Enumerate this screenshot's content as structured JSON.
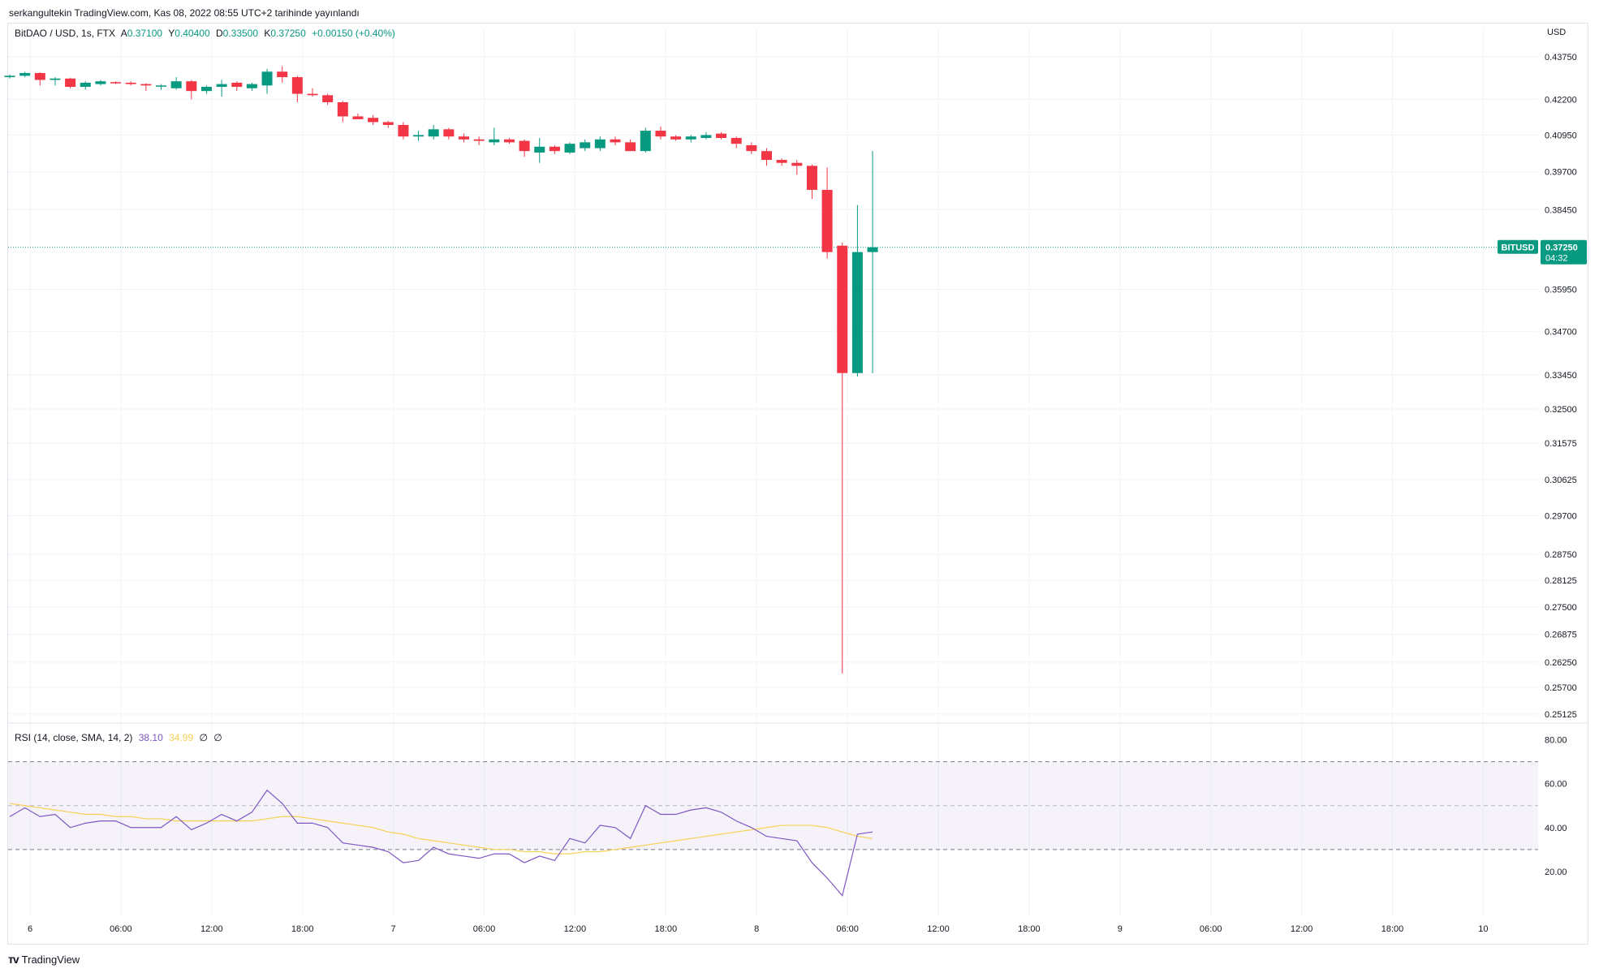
{
  "header": {
    "published_by": "serkangultekin TradingView.com, Kas 08, 2022 08:55 UTC+2 tarihinde yayınlandı"
  },
  "legend": {
    "symbol": "BitDAO / USD, 1s, FTX",
    "open_label": "A",
    "open": "0.37100",
    "high_label": "Y",
    "high": "0.40400",
    "low_label": "D",
    "low": "0.33500",
    "close_label": "K",
    "close": "0.37250",
    "change": "+0.00150 (+0.40%)"
  },
  "price_axis": {
    "unit": "USD",
    "ticks": [
      "0.43750",
      "0.42200",
      "0.40950",
      "0.39700",
      "0.38450",
      "0.35950",
      "0.34700",
      "0.33450",
      "0.32500",
      "0.31575",
      "0.30625",
      "0.29700",
      "0.28750",
      "0.28125",
      "0.27500",
      "0.26875",
      "0.26250",
      "0.25700",
      "0.25125"
    ]
  },
  "price_tag": {
    "symbol": "BITUSD",
    "price": "0.37250",
    "countdown": "04:32"
  },
  "rsi": {
    "legend": "RSI (14, close, SMA, 14, 2)",
    "rsi_value": "38.10",
    "ma_value": "34.99",
    "extra1": "∅",
    "extra2": "∅",
    "ticks": [
      "80.00",
      "60.00",
      "40.00",
      "20.00"
    ],
    "upper_band": 70,
    "lower_band": 30,
    "rsi_color": "#7e57c2",
    "ma_color": "#f7d154"
  },
  "time_axis": {
    "labels": [
      "6",
      "06:00",
      "12:00",
      "18:00",
      "7",
      "06:00",
      "12:00",
      "18:00",
      "8",
      "06:00",
      "12:00",
      "18:00",
      "9",
      "06:00",
      "12:00",
      "18:00",
      "10"
    ]
  },
  "colors": {
    "up": "#089981",
    "down": "#f23645"
  },
  "brand": {
    "name": "TradingView"
  },
  "chart_data": {
    "type": "candlestick",
    "symbol": "BITUSD",
    "interval": "1h",
    "log_scale": true,
    "ylim": [
      0.249,
      0.445
    ],
    "candles": [
      {
        "o": 0.43,
        "h": 0.431,
        "l": 0.4295,
        "c": 0.4305
      },
      {
        "o": 0.4305,
        "h": 0.432,
        "l": 0.43,
        "c": 0.4315
      },
      {
        "o": 0.4315,
        "h": 0.4318,
        "l": 0.427,
        "c": 0.429
      },
      {
        "o": 0.429,
        "h": 0.43,
        "l": 0.427,
        "c": 0.4295
      },
      {
        "o": 0.4295,
        "h": 0.4298,
        "l": 0.426,
        "c": 0.4265
      },
      {
        "o": 0.4265,
        "h": 0.4285,
        "l": 0.4255,
        "c": 0.428
      },
      {
        "o": 0.4275,
        "h": 0.429,
        "l": 0.427,
        "c": 0.4285
      },
      {
        "o": 0.4282,
        "h": 0.4285,
        "l": 0.4275,
        "c": 0.428
      },
      {
        "o": 0.428,
        "h": 0.4285,
        "l": 0.427,
        "c": 0.4275
      },
      {
        "o": 0.4275,
        "h": 0.4278,
        "l": 0.425,
        "c": 0.427
      },
      {
        "o": 0.427,
        "h": 0.4275,
        "l": 0.4255,
        "c": 0.427
      },
      {
        "o": 0.426,
        "h": 0.43,
        "l": 0.4255,
        "c": 0.4285
      },
      {
        "o": 0.4285,
        "h": 0.429,
        "l": 0.422,
        "c": 0.425
      },
      {
        "o": 0.425,
        "h": 0.427,
        "l": 0.424,
        "c": 0.4265
      },
      {
        "o": 0.4265,
        "h": 0.429,
        "l": 0.423,
        "c": 0.4275
      },
      {
        "o": 0.428,
        "h": 0.4285,
        "l": 0.425,
        "c": 0.4265
      },
      {
        "o": 0.426,
        "h": 0.428,
        "l": 0.425,
        "c": 0.4275
      },
      {
        "o": 0.427,
        "h": 0.433,
        "l": 0.424,
        "c": 0.432
      },
      {
        "o": 0.432,
        "h": 0.434,
        "l": 0.428,
        "c": 0.43
      },
      {
        "o": 0.43,
        "h": 0.4305,
        "l": 0.421,
        "c": 0.424
      },
      {
        "o": 0.424,
        "h": 0.426,
        "l": 0.423,
        "c": 0.4235
      },
      {
        "o": 0.4235,
        "h": 0.424,
        "l": 0.42,
        "c": 0.421
      },
      {
        "o": 0.421,
        "h": 0.4215,
        "l": 0.414,
        "c": 0.416
      },
      {
        "o": 0.416,
        "h": 0.417,
        "l": 0.415,
        "c": 0.415
      },
      {
        "o": 0.4155,
        "h": 0.4165,
        "l": 0.413,
        "c": 0.414
      },
      {
        "o": 0.414,
        "h": 0.4145,
        "l": 0.412,
        "c": 0.413
      },
      {
        "o": 0.413,
        "h": 0.414,
        "l": 0.408,
        "c": 0.409
      },
      {
        "o": 0.409,
        "h": 0.411,
        "l": 0.4075,
        "c": 0.4095
      },
      {
        "o": 0.409,
        "h": 0.413,
        "l": 0.408,
        "c": 0.4115
      },
      {
        "o": 0.4115,
        "h": 0.412,
        "l": 0.408,
        "c": 0.409
      },
      {
        "o": 0.409,
        "h": 0.41,
        "l": 0.407,
        "c": 0.408
      },
      {
        "o": 0.408,
        "h": 0.409,
        "l": 0.406,
        "c": 0.4075
      },
      {
        "o": 0.407,
        "h": 0.412,
        "l": 0.406,
        "c": 0.408
      },
      {
        "o": 0.408,
        "h": 0.4085,
        "l": 0.4065,
        "c": 0.407
      },
      {
        "o": 0.4075,
        "h": 0.408,
        "l": 0.402,
        "c": 0.404
      },
      {
        "o": 0.4035,
        "h": 0.4085,
        "l": 0.4,
        "c": 0.4055
      },
      {
        "o": 0.4055,
        "h": 0.406,
        "l": 0.403,
        "c": 0.404
      },
      {
        "o": 0.4035,
        "h": 0.407,
        "l": 0.403,
        "c": 0.4065
      },
      {
        "o": 0.405,
        "h": 0.408,
        "l": 0.404,
        "c": 0.407
      },
      {
        "o": 0.405,
        "h": 0.409,
        "l": 0.404,
        "c": 0.408
      },
      {
        "o": 0.408,
        "h": 0.409,
        "l": 0.406,
        "c": 0.407
      },
      {
        "o": 0.407,
        "h": 0.408,
        "l": 0.404,
        "c": 0.404
      },
      {
        "o": 0.404,
        "h": 0.412,
        "l": 0.4035,
        "c": 0.411
      },
      {
        "o": 0.411,
        "h": 0.4125,
        "l": 0.408,
        "c": 0.409
      },
      {
        "o": 0.409,
        "h": 0.4095,
        "l": 0.4075,
        "c": 0.408
      },
      {
        "o": 0.408,
        "h": 0.4095,
        "l": 0.407,
        "c": 0.409
      },
      {
        "o": 0.4085,
        "h": 0.4105,
        "l": 0.408,
        "c": 0.4095
      },
      {
        "o": 0.41,
        "h": 0.4105,
        "l": 0.408,
        "c": 0.4085
      },
      {
        "o": 0.4085,
        "h": 0.409,
        "l": 0.405,
        "c": 0.4065
      },
      {
        "o": 0.406,
        "h": 0.407,
        "l": 0.403,
        "c": 0.404
      },
      {
        "o": 0.404,
        "h": 0.405,
        "l": 0.399,
        "c": 0.401
      },
      {
        "o": 0.401,
        "h": 0.4015,
        "l": 0.399,
        "c": 0.4
      },
      {
        "o": 0.4,
        "h": 0.401,
        "l": 0.396,
        "c": 0.399
      },
      {
        "o": 0.399,
        "h": 0.3995,
        "l": 0.388,
        "c": 0.391
      },
      {
        "o": 0.391,
        "h": 0.3985,
        "l": 0.369,
        "c": 0.371
      },
      {
        "o": 0.373,
        "h": 0.374,
        "l": 0.26,
        "c": 0.335
      },
      {
        "o": 0.335,
        "h": 0.386,
        "l": 0.334,
        "c": 0.371
      },
      {
        "o": 0.371,
        "h": 0.404,
        "l": 0.335,
        "c": 0.3725
      }
    ],
    "rsi_values": [
      45,
      49,
      45,
      46,
      40,
      42,
      43,
      43,
      40,
      40,
      40,
      45,
      39,
      42,
      46,
      43,
      47,
      57,
      51,
      42,
      42,
      40,
      33,
      32,
      31,
      29,
      24,
      25,
      31,
      28,
      27,
      26,
      28,
      28,
      24,
      27,
      25,
      35,
      33,
      41,
      40,
      35,
      50,
      46,
      46,
      48,
      49,
      47,
      43,
      40,
      36,
      35,
      34,
      24,
      17,
      9,
      37,
      38
    ],
    "rsi_ma_values": [
      51,
      50,
      49,
      48,
      47,
      46,
      46,
      45,
      45,
      44,
      44,
      43,
      43,
      43,
      43,
      43,
      43,
      44,
      45,
      45,
      44,
      43,
      42,
      41,
      40,
      38,
      37,
      35,
      34,
      33,
      32,
      31,
      30,
      30,
      29,
      29,
      28,
      28,
      29,
      29,
      30,
      31,
      32,
      33,
      34,
      35,
      36,
      37,
      38,
      39,
      40,
      41,
      41,
      41,
      40,
      38,
      36,
      35
    ],
    "rsi_ylim": [
      0,
      85
    ]
  }
}
